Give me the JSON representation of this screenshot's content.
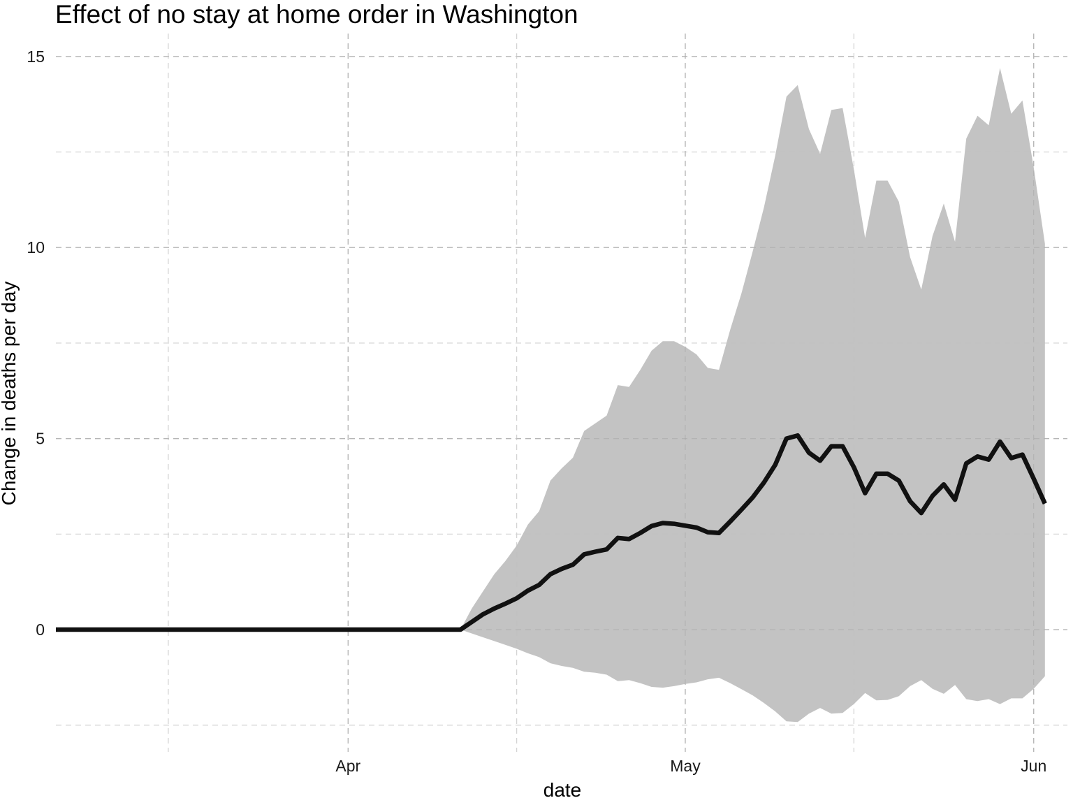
{
  "chart_data": {
    "type": "area",
    "title": "Effect of no stay at home order in Washington",
    "xlabel": "date",
    "ylabel": "Change in deaths per day",
    "x_tick_labels": [
      "Apr",
      "May",
      "Jun"
    ],
    "x_ticks": [
      "2020-04-01",
      "2020-05-01",
      "2020-06-01"
    ],
    "x_minor_ticks": [
      "2020-03-16",
      "2020-04-16",
      "2020-05-16"
    ],
    "y_tick_labels": [
      "0",
      "5",
      "10",
      "15"
    ],
    "y_ticks": [
      0,
      5,
      10,
      15
    ],
    "y_minor_ticks": [
      -2.5,
      2.5,
      7.5,
      12.5
    ],
    "xlim": [
      "2020-03-06",
      "2020-06-04"
    ],
    "ylim": [
      -3.2,
      15.6
    ],
    "grid": true,
    "line_color": "#111111",
    "ribbon_color": "#c0c0c0",
    "series": [
      {
        "x": [
          "2020-03-06",
          "2020-03-07",
          "2020-03-08",
          "2020-03-09",
          "2020-03-10",
          "2020-03-11",
          "2020-03-12",
          "2020-03-13",
          "2020-03-14",
          "2020-03-15",
          "2020-03-16",
          "2020-03-17",
          "2020-03-18",
          "2020-03-19",
          "2020-03-20",
          "2020-03-21",
          "2020-03-22",
          "2020-03-23",
          "2020-03-24",
          "2020-03-25",
          "2020-03-26",
          "2020-03-27",
          "2020-03-28",
          "2020-03-29",
          "2020-03-30",
          "2020-03-31",
          "2020-04-01",
          "2020-04-02",
          "2020-04-03",
          "2020-04-04",
          "2020-04-05",
          "2020-04-06",
          "2020-04-07",
          "2020-04-08",
          "2020-04-09",
          "2020-04-10",
          "2020-04-11",
          "2020-04-12",
          "2020-04-13",
          "2020-04-14",
          "2020-04-15",
          "2020-04-16",
          "2020-04-17",
          "2020-04-18",
          "2020-04-19",
          "2020-04-20",
          "2020-04-21",
          "2020-04-22",
          "2020-04-23",
          "2020-04-24",
          "2020-04-25",
          "2020-04-26",
          "2020-04-27",
          "2020-04-28",
          "2020-04-29",
          "2020-04-30",
          "2020-05-01",
          "2020-05-02",
          "2020-05-03",
          "2020-05-04",
          "2020-05-05",
          "2020-05-06",
          "2020-05-07",
          "2020-05-08",
          "2020-05-09",
          "2020-05-10",
          "2020-05-11",
          "2020-05-12",
          "2020-05-13",
          "2020-05-14",
          "2020-05-15",
          "2020-05-16",
          "2020-05-17",
          "2020-05-18",
          "2020-05-19",
          "2020-05-20",
          "2020-05-21",
          "2020-05-22",
          "2020-05-23",
          "2020-05-24",
          "2020-05-25",
          "2020-05-26",
          "2020-05-27",
          "2020-05-28",
          "2020-05-29",
          "2020-05-30",
          "2020-05-31",
          "2020-06-01",
          "2020-06-02"
        ],
        "y": [
          0,
          0,
          0,
          0,
          0,
          0,
          0,
          0,
          0,
          0,
          0,
          0,
          0,
          0,
          0,
          0,
          0,
          0,
          0,
          0,
          0,
          0,
          0,
          0,
          0,
          0,
          0,
          0,
          0,
          0,
          0,
          0,
          0,
          0,
          0,
          0,
          0,
          0.2,
          0.4,
          0.55,
          0.68,
          0.82,
          1.02,
          1.17,
          1.45,
          1.59,
          1.7,
          1.97,
          2.04,
          2.1,
          2.4,
          2.37,
          2.53,
          2.71,
          2.79,
          2.77,
          2.72,
          2.67,
          2.55,
          2.53,
          2.83,
          3.14,
          3.46,
          3.85,
          4.31,
          5.0,
          5.08,
          4.63,
          4.42,
          4.8,
          4.8,
          4.25,
          3.57,
          4.08,
          4.08,
          3.9,
          3.36,
          3.05,
          3.5,
          3.8,
          3.4,
          4.35,
          4.53,
          4.45,
          4.92,
          4.49,
          4.58,
          3.95,
          3.3
        ],
        "lower": [
          0,
          0,
          0,
          0,
          0,
          0,
          0,
          0,
          0,
          0,
          0,
          0,
          0,
          0,
          0,
          0,
          0,
          0,
          0,
          0,
          0,
          0,
          0,
          0,
          0,
          0,
          0,
          0,
          0,
          0,
          0,
          0,
          0,
          0,
          0,
          0,
          0,
          -0.1,
          -0.2,
          -0.3,
          -0.4,
          -0.5,
          -0.62,
          -0.72,
          -0.88,
          -0.95,
          -1.0,
          -1.1,
          -1.13,
          -1.18,
          -1.35,
          -1.32,
          -1.4,
          -1.5,
          -1.52,
          -1.48,
          -1.42,
          -1.38,
          -1.3,
          -1.26,
          -1.4,
          -1.56,
          -1.72,
          -1.92,
          -2.14,
          -2.4,
          -2.42,
          -2.2,
          -2.05,
          -2.2,
          -2.18,
          -1.95,
          -1.66,
          -1.85,
          -1.84,
          -1.74,
          -1.48,
          -1.32,
          -1.55,
          -1.68,
          -1.45,
          -1.82,
          -1.87,
          -1.82,
          -1.95,
          -1.8,
          -1.8,
          -1.55,
          -1.22
        ],
        "upper": [
          0,
          0,
          0,
          0,
          0,
          0,
          0,
          0,
          0,
          0,
          0,
          0,
          0,
          0,
          0,
          0,
          0,
          0,
          0,
          0,
          0,
          0,
          0,
          0,
          0,
          0,
          0,
          0,
          0,
          0,
          0,
          0,
          0,
          0,
          0,
          0,
          0,
          0.55,
          1.0,
          1.45,
          1.8,
          2.2,
          2.75,
          3.1,
          3.9,
          4.22,
          4.5,
          5.2,
          5.4,
          5.6,
          6.4,
          6.35,
          6.8,
          7.3,
          7.55,
          7.55,
          7.4,
          7.2,
          6.85,
          6.8,
          7.85,
          8.8,
          9.9,
          11.05,
          12.4,
          13.95,
          14.25,
          13.1,
          12.45,
          13.6,
          13.65,
          12.05,
          10.25,
          11.75,
          11.75,
          11.2,
          9.75,
          8.9,
          10.3,
          11.15,
          10.15,
          12.85,
          13.45,
          13.2,
          14.7,
          13.5,
          13.85,
          12.1,
          10.1
        ]
      }
    ]
  }
}
